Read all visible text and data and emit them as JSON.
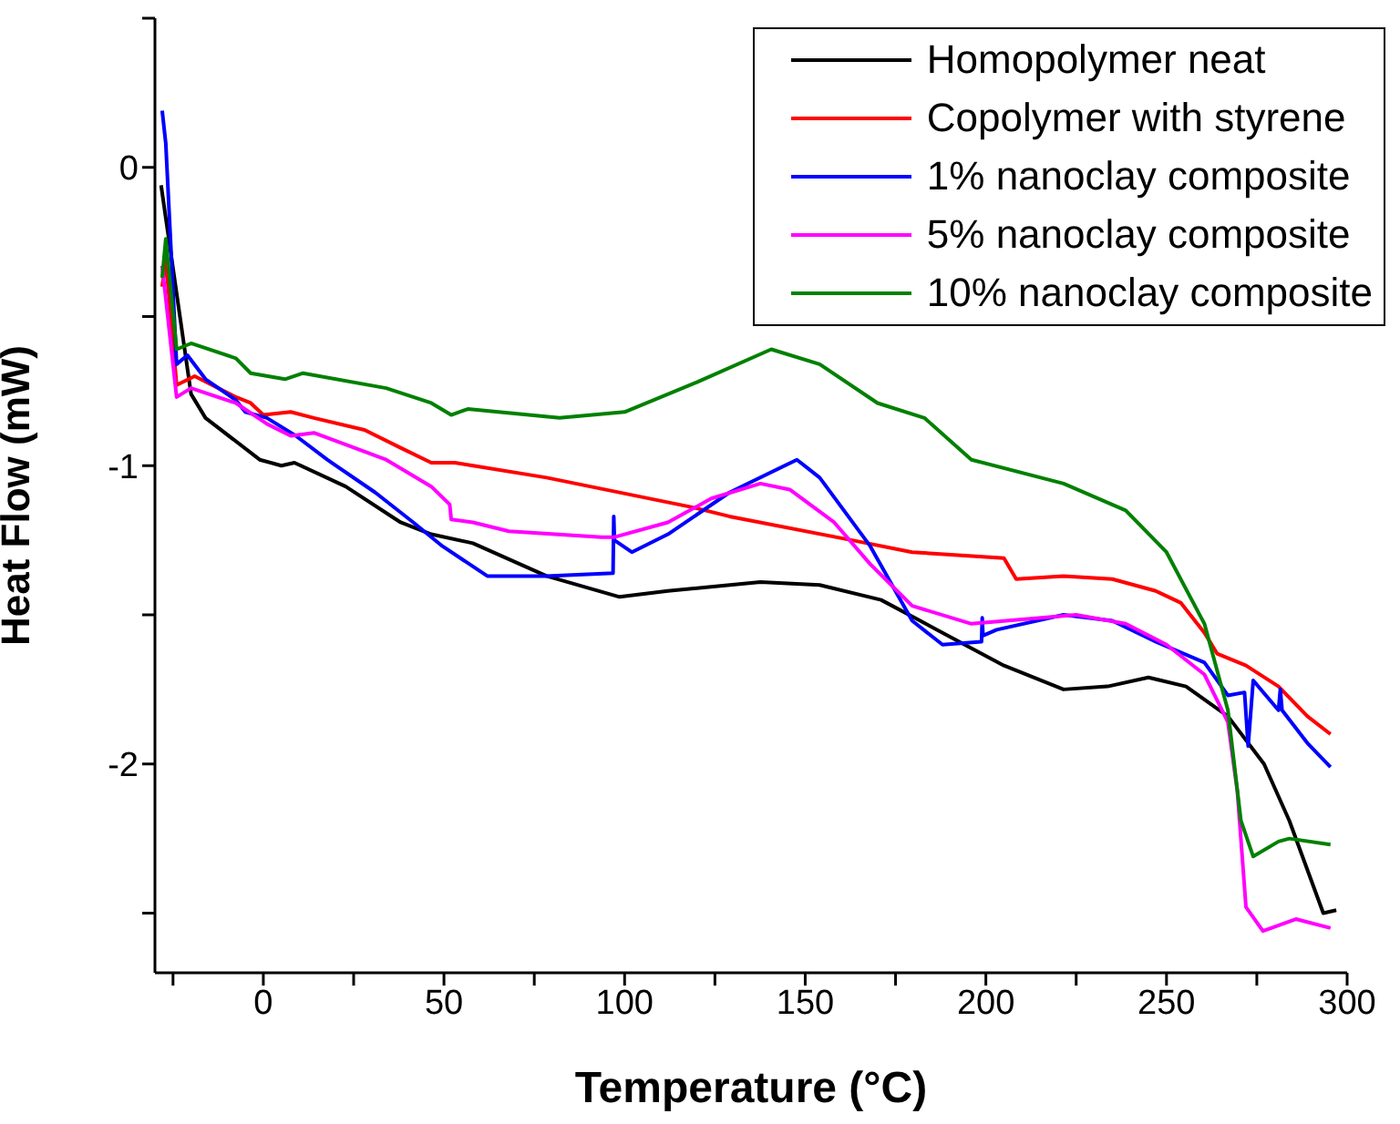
{
  "chart_data": {
    "type": "line",
    "xlabel": "Temperature (°C)",
    "ylabel": "Heat Flow (mW)",
    "xlim": [
      -30,
      300
    ],
    "xticks": [
      {
        "value": -25,
        "label": null
      },
      0,
      {
        "value": 25,
        "label": null
      },
      50,
      {
        "value": 75,
        "label": null
      },
      100,
      {
        "value": 125,
        "label": null
      },
      150,
      {
        "value": 175,
        "label": null
      },
      200,
      {
        "value": 225,
        "label": null
      },
      250,
      {
        "value": 275,
        "label": null
      },
      300
    ],
    "ylim": [
      -2.7,
      0.5
    ],
    "yticks": [
      {
        "value": 0.5,
        "label": null
      },
      0,
      {
        "value": -0.5,
        "label": null
      },
      -1,
      {
        "value": -1.5,
        "label": null
      },
      -2,
      {
        "value": -2.5,
        "label": null
      }
    ],
    "grid": false,
    "legend": "top right",
    "marker": "none",
    "line_style": "solid",
    "series": [
      {
        "name": "Homopolymer neat",
        "color": "#000000",
        "x": [
          -28.3,
          -20,
          -16,
          -1,
          5,
          8.6,
          22.8,
          38,
          46.5,
          58,
          78.4,
          98.6,
          112,
          137.6,
          154,
          171,
          188,
          205,
          221.5,
          233.7,
          245,
          255.4,
          267,
          277,
          284,
          293.4,
          297
        ],
        "values": [
          -0.06,
          -0.76,
          -0.84,
          -0.98,
          -1.0,
          -0.99,
          -1.07,
          -1.19,
          -1.23,
          -1.26,
          -1.37,
          -1.44,
          -1.42,
          -1.39,
          -1.4,
          -1.45,
          -1.56,
          -1.67,
          -1.75,
          -1.74,
          -1.71,
          -1.74,
          -1.84,
          -2.0,
          -2.19,
          -2.5,
          -2.49
        ]
      },
      {
        "name": "Copolymer with styrene",
        "color": "#ff0000",
        "x": [
          -28,
          -27,
          -24,
          -19,
          -7.6,
          -3.5,
          0,
          7.6,
          14,
          28,
          38,
          46.5,
          53,
          78.4,
          119,
          129,
          163,
          179.6,
          205,
          208.4,
          221.5,
          235,
          247,
          254,
          260.5,
          264,
          272,
          281,
          289,
          295.4
        ],
        "values": [
          -0.4,
          -0.31,
          -0.73,
          -0.7,
          -0.77,
          -0.79,
          -0.83,
          -0.82,
          -0.84,
          -0.88,
          -0.94,
          -0.99,
          -0.99,
          -1.04,
          -1.14,
          -1.17,
          -1.25,
          -1.29,
          -1.31,
          -1.38,
          -1.37,
          -1.38,
          -1.42,
          -1.46,
          -1.56,
          -1.63,
          -1.67,
          -1.74,
          -1.84,
          -1.9
        ]
      },
      {
        "name": "1% nanoclay composite",
        "color": "#0000ff",
        "x": [
          -28,
          -27,
          -24,
          -21,
          -16,
          -7.6,
          -5,
          1,
          9,
          17.7,
          31,
          41.5,
          49.6,
          62,
          78.4,
          96.8,
          97,
          97.2,
          102,
          112,
          129,
          147.7,
          154,
          168,
          179.6,
          188,
          198.8,
          199,
          199.2,
          203,
          221.5,
          235,
          247,
          260.5,
          267,
          271.6,
          272.6,
          274,
          281,
          281.5,
          282,
          289,
          295.4
        ],
        "values": [
          0.19,
          0.08,
          -0.66,
          -0.63,
          -0.71,
          -0.78,
          -0.82,
          -0.84,
          -0.9,
          -0.98,
          -1.09,
          -1.19,
          -1.27,
          -1.37,
          -1.37,
          -1.36,
          -1.17,
          -1.25,
          -1.29,
          -1.23,
          -1.09,
          -0.98,
          -1.04,
          -1.27,
          -1.52,
          -1.6,
          -1.59,
          -1.51,
          -1.57,
          -1.55,
          -1.5,
          -1.52,
          -1.59,
          -1.66,
          -1.77,
          -1.76,
          -1.94,
          -1.72,
          -1.82,
          -1.75,
          -1.82,
          -1.93,
          -2.01
        ]
      },
      {
        "name": "5% nanoclay composite",
        "color": "#ff00ff",
        "x": [
          -28,
          -24,
          -20,
          -7.6,
          1,
          7.6,
          14,
          34,
          46.5,
          51.6,
          52,
          58,
          68,
          93.6,
          97,
          112,
          124,
          137.6,
          145.7,
          158,
          168,
          179.6,
          196,
          225,
          238.7,
          250,
          260.5,
          267,
          269.6,
          272,
          276.7,
          285.8,
          295.4
        ],
        "values": [
          -0.33,
          -0.77,
          -0.74,
          -0.79,
          -0.86,
          -0.9,
          -0.89,
          -0.98,
          -1.07,
          -1.13,
          -1.18,
          -1.19,
          -1.22,
          -1.24,
          -1.24,
          -1.19,
          -1.11,
          -1.06,
          -1.08,
          -1.19,
          -1.33,
          -1.47,
          -1.53,
          -1.5,
          -1.53,
          -1.6,
          -1.7,
          -1.86,
          -2.09,
          -2.48,
          -2.56,
          -2.52,
          -2.55
        ]
      },
      {
        "name": "10% nanoclay composite",
        "color": "#008000",
        "x": [
          -28,
          -27,
          -24,
          -20,
          -7.6,
          -3.5,
          6,
          11,
          34,
          46.5,
          52,
          56.6,
          82,
          100,
          120,
          140.6,
          154,
          170,
          183,
          196,
          221.5,
          238.7,
          250,
          260.5,
          267,
          270.6,
          274,
          281,
          284,
          295.4
        ],
        "values": [
          -0.37,
          -0.24,
          -0.61,
          -0.59,
          -0.64,
          -0.69,
          -0.71,
          -0.69,
          -0.74,
          -0.79,
          -0.83,
          -0.81,
          -0.84,
          -0.82,
          -0.72,
          -0.61,
          -0.66,
          -0.79,
          -0.84,
          -0.98,
          -1.06,
          -1.15,
          -1.29,
          -1.53,
          -1.82,
          -2.19,
          -2.31,
          -2.26,
          -2.25,
          -2.27
        ]
      }
    ]
  }
}
